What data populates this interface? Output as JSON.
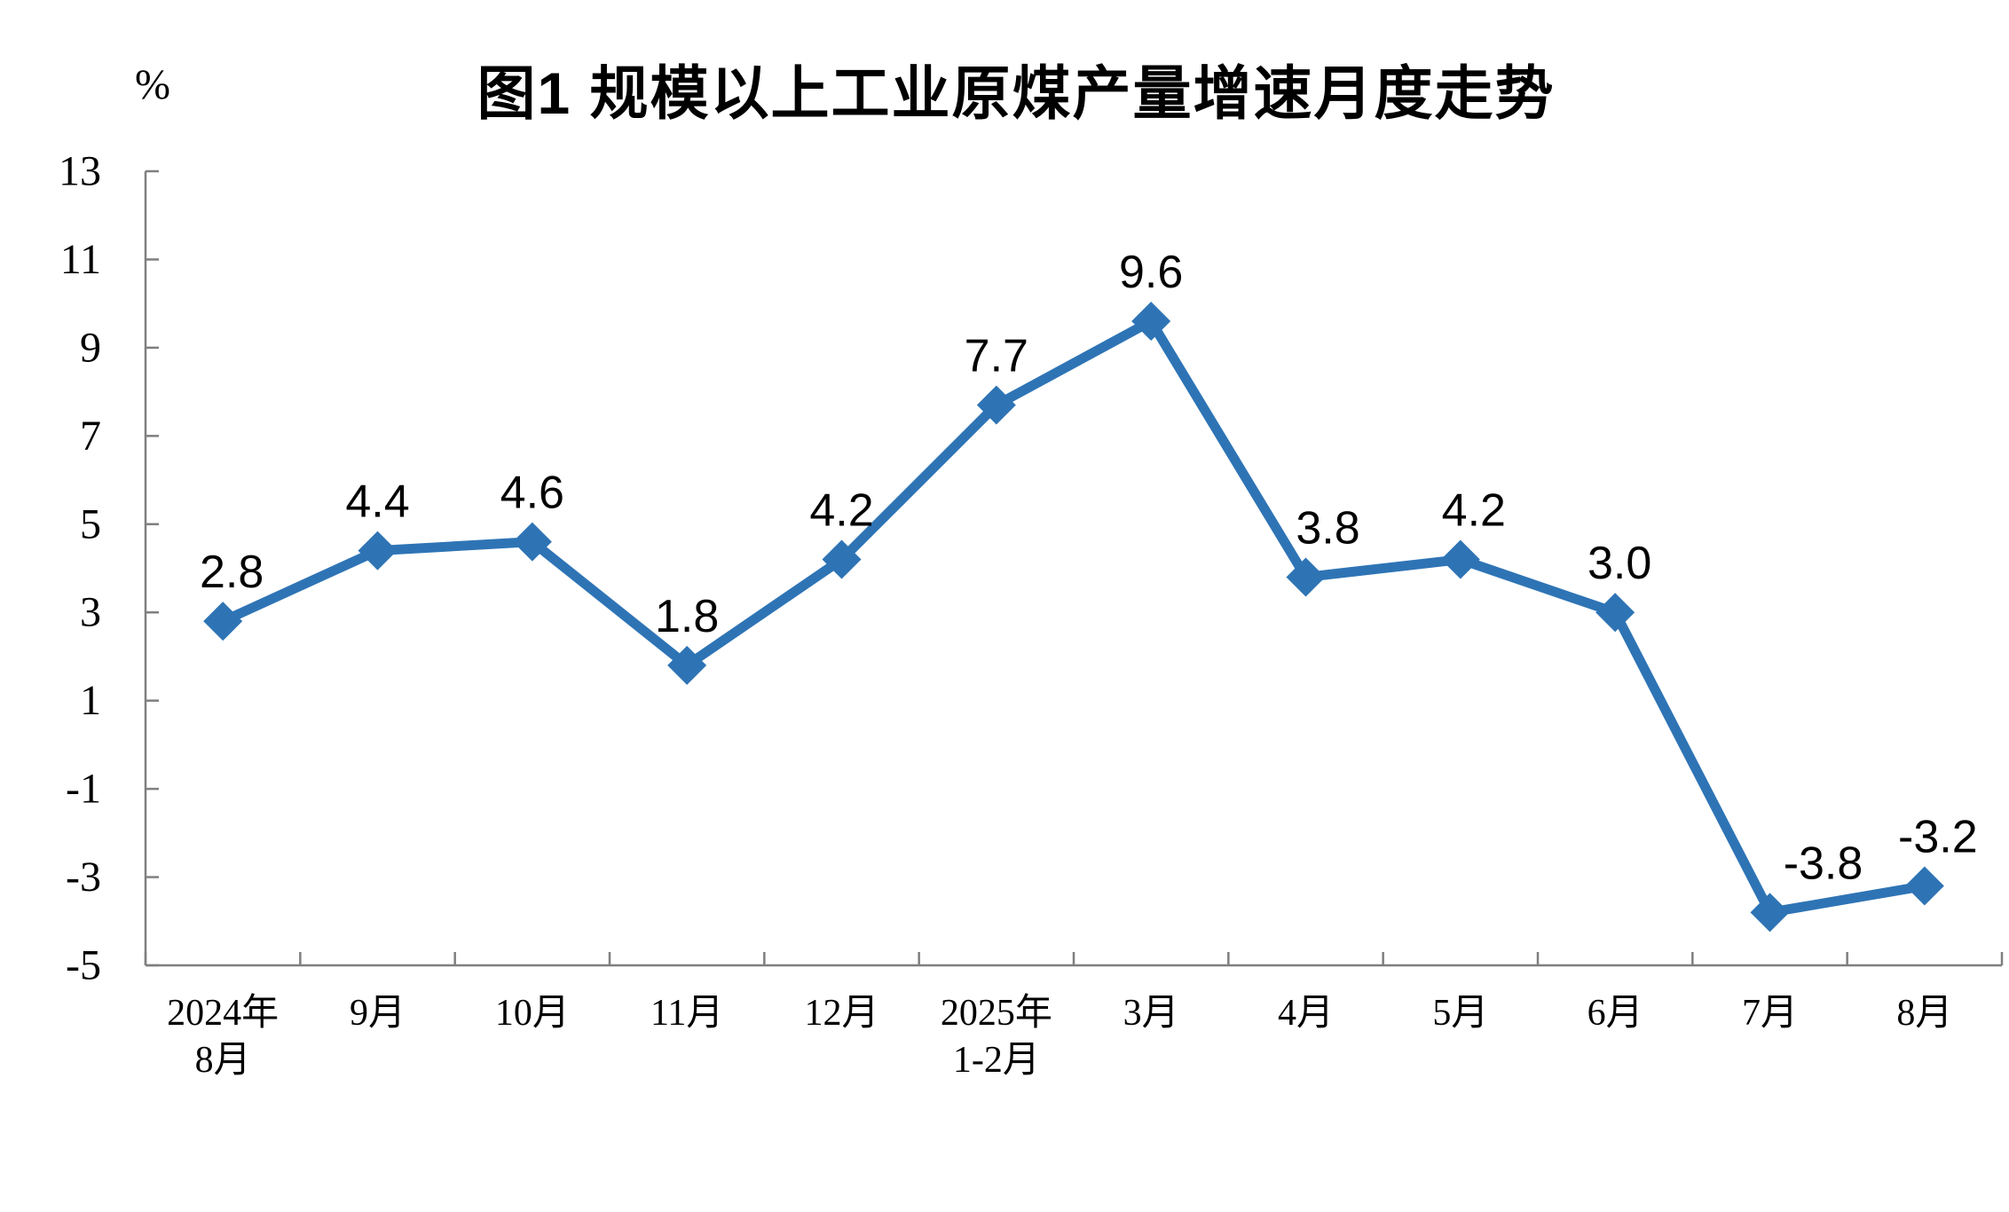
{
  "page": {
    "background": "#ffffff"
  },
  "chart_data": {
    "type": "line",
    "title": "图1 规模以上工业原煤产量增速月度走势",
    "unit_label": "%",
    "categories": [
      [
        "2024年",
        "8月"
      ],
      [
        "9月"
      ],
      [
        "10月"
      ],
      [
        "11月"
      ],
      [
        "12月"
      ],
      [
        "2025年",
        "1-2月"
      ],
      [
        "3月"
      ],
      [
        "4月"
      ],
      [
        "5月"
      ],
      [
        "6月"
      ],
      [
        "7月"
      ],
      [
        "8月"
      ]
    ],
    "values": [
      2.8,
      4.4,
      4.6,
      1.8,
      4.2,
      7.7,
      9.6,
      3.8,
      4.2,
      3.0,
      -3.8,
      -3.2
    ],
    "point_labels": [
      "2.8",
      "4.4",
      "4.6",
      "1.8",
      "4.2",
      "7.7",
      "9.6",
      "3.8",
      "4.2",
      "3.0",
      "-3.8",
      "-3.2"
    ],
    "ylim": [
      -5,
      13
    ],
    "yticks": [
      13,
      11,
      9,
      7,
      5,
      3,
      1,
      -1,
      -3,
      -5
    ],
    "grid": false,
    "legend": "none",
    "marker": "diamond",
    "line_color": "#2E74B5",
    "axis_color": "#7f7f7f",
    "label_color": "#000000"
  }
}
